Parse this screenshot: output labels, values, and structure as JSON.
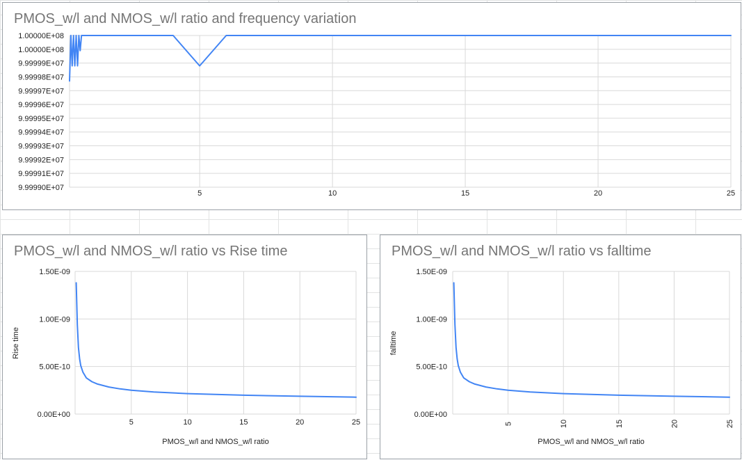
{
  "colors": {
    "series": "#4285f4",
    "grid": "#d9d9d9",
    "title": "#757575",
    "sheet_grid": "#e2e3e3"
  },
  "chart_data": [
    {
      "type": "line",
      "title": "PMOS_w/l and NMOS_w/l ratio and frequency variation",
      "xlabel": "",
      "ylabel": "",
      "xlim": [
        0.1,
        25
      ],
      "ylim": [
        99999000,
        100000000
      ],
      "x_ticks": [
        "5",
        "10",
        "15",
        "20",
        "25"
      ],
      "y_ticks": [
        "1.00000E+08",
        "1.00000E+08",
        "9.99999E+07",
        "9.99998E+07",
        "9.99997E+07",
        "9.99996E+07",
        "9.99995E+07",
        "9.99994E+07",
        "9.99993E+07",
        "9.99992E+07",
        "9.99991E+07",
        "9.99990E+07"
      ],
      "grid": true,
      "series": [
        {
          "x": [
            0.1,
            0.15,
            0.2,
            0.25,
            0.3,
            0.35,
            0.4,
            0.45,
            0.5,
            0.55,
            0.6,
            4,
            5,
            6,
            25
          ],
          "y": [
            99999700,
            100000000,
            99999800,
            100000000,
            99999800,
            100000000,
            99999800,
            100000000,
            99999900,
            100000000,
            100000000,
            100000000,
            99999800,
            100000000,
            100000000
          ]
        }
      ]
    },
    {
      "type": "line",
      "title": "PMOS_w/l and NMOS_w/l ratio vs Rise time",
      "xlabel": "PMOS_w/l and NMOS_w/l ratio",
      "ylabel": "Rise time",
      "xlim": [
        0,
        25
      ],
      "ylim": [
        0,
        1.5e-09
      ],
      "x_ticks": [
        "5",
        "10",
        "15",
        "20",
        "25"
      ],
      "y_ticks": [
        "0.00E+00",
        "5.00E-10",
        "1.00E-09",
        "1.50E-09"
      ],
      "grid": true,
      "series": [
        {
          "x": [
            0.1,
            0.2,
            0.3,
            0.4,
            0.5,
            0.7,
            1,
            1.5,
            2,
            3,
            4,
            5,
            7,
            10,
            15,
            20,
            25
          ],
          "y": [
            1.38e-09,
            9.4e-10,
            7e-10,
            5.8e-10,
            5.1e-10,
            4.4e-10,
            3.8e-10,
            3.4e-10,
            3.15e-10,
            2.85e-10,
            2.65e-10,
            2.5e-10,
            2.32e-10,
            2.15e-10,
            1.98e-10,
            1.87e-10,
            1.78e-10
          ]
        }
      ]
    },
    {
      "type": "line",
      "title": "PMOS_w/l and NMOS_w/l ratio vs falltime",
      "xlabel": "PMOS_w/l and NMOS_w/l ratio",
      "ylabel": "falltime",
      "xlim": [
        0,
        25
      ],
      "ylim": [
        0,
        1.5e-09
      ],
      "x_ticks": [
        "5",
        "10",
        "15",
        "20",
        "25"
      ],
      "y_ticks": [
        "0.00E+00",
        "5.00E-10",
        "1.00E-09",
        "1.50E-09"
      ],
      "grid": true,
      "series": [
        {
          "x": [
            0.1,
            0.2,
            0.3,
            0.4,
            0.5,
            0.7,
            1,
            1.5,
            2,
            3,
            4,
            5,
            7,
            10,
            15,
            20,
            25
          ],
          "y": [
            1.38e-09,
            9.4e-10,
            7e-10,
            5.8e-10,
            5.1e-10,
            4.4e-10,
            3.8e-10,
            3.4e-10,
            3.15e-10,
            2.85e-10,
            2.65e-10,
            2.5e-10,
            2.32e-10,
            2.15e-10,
            1.98e-10,
            1.87e-10,
            1.78e-10
          ]
        }
      ]
    }
  ]
}
